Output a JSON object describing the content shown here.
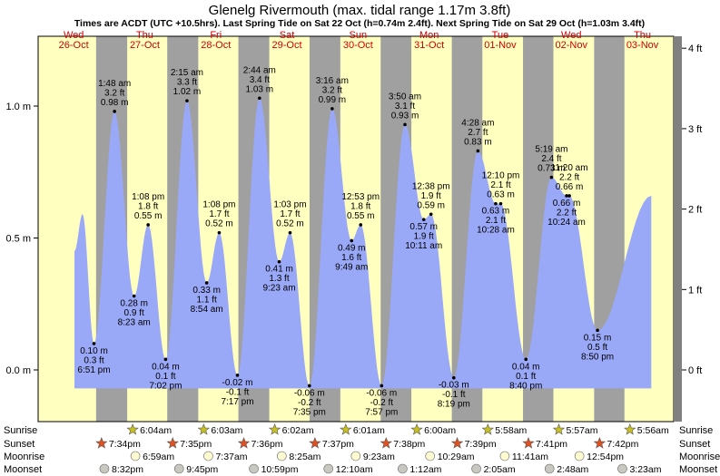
{
  "title": "Glenelg Rivermouth (max. tidal range 1.17m 3.8ft)",
  "subtitle": "Times are ACDT (UTC +10.5hrs). Last Spring Tide on Sat 22 Oct (h=0.74m 2.4ft). Next Spring Tide on Sat 29 Oct (h=1.03m 3.4ft)",
  "colors": {
    "day": "#ffffc0",
    "night": "#a0a0a0",
    "water": "#9aa8f8",
    "day_label": "#d00000",
    "border": "#808080"
  },
  "chart_data": {
    "type": "area",
    "x_unit": "date/time (ACDT)",
    "y_unit": "m",
    "ylim": [
      -0.17,
      1.21
    ],
    "yticks_left": [
      "0.0 m",
      "0.5 m",
      "1.0 m"
    ],
    "yticks_right": [
      "0 ft",
      "1 ft",
      "2 ft",
      "3 ft",
      "4 ft"
    ],
    "days": [
      {
        "weekday": "Wed",
        "date": "26-Oct"
      },
      {
        "weekday": "Thu",
        "date": "27-Oct"
      },
      {
        "weekday": "Fri",
        "date": "28-Oct"
      },
      {
        "weekday": "Sat",
        "date": "29-Oct"
      },
      {
        "weekday": "Sun",
        "date": "30-Oct"
      },
      {
        "weekday": "Mon",
        "date": "31-Oct"
      },
      {
        "weekday": "Tue",
        "date": "01-Nov"
      },
      {
        "weekday": "Wed",
        "date": "02-Nov"
      },
      {
        "weekday": "Thu",
        "date": "03-Nov"
      }
    ],
    "series_start": {
      "day": 0,
      "time": "12:15 pm",
      "m": 0.45
    },
    "series_end": {
      "day": 8,
      "time": "3:00 pm",
      "m": 0.66
    },
    "extremes": [
      {
        "day": 0,
        "time": "3:00 pm",
        "m": 0.59,
        "labeled": false
      },
      {
        "day": 0,
        "time": "6:51 pm",
        "m": 0.1,
        "ft": "0.3 ft",
        "m_label": "0.10 m",
        "time_label": "6:51 pm",
        "kind": "low"
      },
      {
        "day": 1,
        "time": "1:48 am",
        "m": 0.98,
        "ft": "3.2 ft",
        "m_label": "0.98 m",
        "time_label": "1:48 am",
        "kind": "high"
      },
      {
        "day": 1,
        "time": "8:23 am",
        "m": 0.28,
        "ft": "0.9 ft",
        "m_label": "0.28 m",
        "time_label": "8:23 am",
        "kind": "low"
      },
      {
        "day": 1,
        "time": "1:08 pm",
        "m": 0.55,
        "ft": "1.8 ft",
        "m_label": "0.55 m",
        "time_label": "1:08 pm",
        "kind": "high"
      },
      {
        "day": 1,
        "time": "7:02 pm",
        "m": 0.04,
        "ft": "0.1 ft",
        "m_label": "0.04 m",
        "time_label": "7:02 pm",
        "kind": "low"
      },
      {
        "day": 2,
        "time": "2:15 am",
        "m": 1.02,
        "ft": "3.3 ft",
        "m_label": "1.02 m",
        "time_label": "2:15 am",
        "kind": "high"
      },
      {
        "day": 2,
        "time": "8:54 am",
        "m": 0.33,
        "ft": "1.1 ft",
        "m_label": "0.33 m",
        "time_label": "8:54 am",
        "kind": "low"
      },
      {
        "day": 2,
        "time": "1:08 pm",
        "m": 0.52,
        "ft": "1.7 ft",
        "m_label": "0.52 m",
        "time_label": "1:08 pm",
        "kind": "high"
      },
      {
        "day": 2,
        "time": "7:17 pm",
        "m": -0.02,
        "ft": "-0.1 ft",
        "m_label": "-0.02 m",
        "time_label": "7:17 pm",
        "kind": "low"
      },
      {
        "day": 3,
        "time": "2:44 am",
        "m": 1.03,
        "ft": "3.4 ft",
        "m_label": "1.03 m",
        "time_label": "2:44 am",
        "kind": "high"
      },
      {
        "day": 3,
        "time": "9:23 am",
        "m": 0.41,
        "ft": "1.3 ft",
        "m_label": "0.41 m",
        "time_label": "9:23 am",
        "kind": "low"
      },
      {
        "day": 3,
        "time": "1:03 pm",
        "m": 0.52,
        "ft": "1.7 ft",
        "m_label": "0.52 m",
        "time_label": "1:03 pm",
        "kind": "high"
      },
      {
        "day": 3,
        "time": "7:35 pm",
        "m": -0.06,
        "ft": "-0.2 ft",
        "m_label": "-0.06 m",
        "time_label": "7:35 pm",
        "kind": "low"
      },
      {
        "day": 4,
        "time": "3:16 am",
        "m": 0.99,
        "ft": "3.2 ft",
        "m_label": "0.99 m",
        "time_label": "3:16 am",
        "kind": "high"
      },
      {
        "day": 4,
        "time": "9:49 am",
        "m": 0.49,
        "ft": "1.6 ft",
        "m_label": "0.49 m",
        "time_label": "9:49 am",
        "kind": "low"
      },
      {
        "day": 4,
        "time": "12:53 pm",
        "m": 0.55,
        "ft": "1.8 ft",
        "m_label": "0.55 m",
        "time_label": "12:53 pm",
        "kind": "high"
      },
      {
        "day": 4,
        "time": "7:57 pm",
        "m": -0.06,
        "ft": "-0.2 ft",
        "m_label": "-0.06 m",
        "time_label": "7:57 pm",
        "kind": "low"
      },
      {
        "day": 5,
        "time": "3:50 am",
        "m": 0.93,
        "ft": "3.1 ft",
        "m_label": "0.93 m",
        "time_label": "3:50 am",
        "kind": "high"
      },
      {
        "day": 5,
        "time": "10:11 am",
        "m": 0.57,
        "ft": "1.9 ft",
        "m_label": "0.57 m",
        "time_label": "10:11 am",
        "kind": "low"
      },
      {
        "day": 5,
        "time": "12:38 pm",
        "m": 0.59,
        "ft": "1.9 ft",
        "m_label": "0.59 m",
        "time_label": "12:38 pm",
        "kind": "high"
      },
      {
        "day": 5,
        "time": "8:19 pm",
        "m": -0.03,
        "ft": "-0.1 ft",
        "m_label": "-0.03 m",
        "time_label": "8:19 pm",
        "kind": "low"
      },
      {
        "day": 6,
        "time": "4:28 am",
        "m": 0.83,
        "ft": "2.7 ft",
        "m_label": "0.83 m",
        "time_label": "4:28 am",
        "kind": "high"
      },
      {
        "day": 6,
        "time": "10:28 am",
        "m": 0.63,
        "ft": "2.1 ft",
        "m_label": "0.63 m",
        "time_label": "10:28 am",
        "kind": "low"
      },
      {
        "day": 6,
        "time": "12:10 pm",
        "m": 0.63,
        "ft": "2.1 ft",
        "m_label": "0.63 m",
        "time_label": "12:10 pm",
        "kind": "high"
      },
      {
        "day": 6,
        "time": "8:40 pm",
        "m": 0.04,
        "ft": "0.1 ft",
        "m_label": "0.04 m",
        "time_label": "8:40 pm",
        "kind": "low"
      },
      {
        "day": 7,
        "time": "5:19 am",
        "m": 0.73,
        "ft": "2.4 ft",
        "m_label": "0.73 m",
        "time_label": "5:19 am",
        "kind": "high"
      },
      {
        "day": 7,
        "time": "10:24 am",
        "m": 0.66,
        "ft": "2.2 ft",
        "m_label": "0.66 m",
        "time_label": "10:24 am",
        "kind": "low"
      },
      {
        "day": 7,
        "time": "11:20 am",
        "m": 0.66,
        "ft": "2.2 ft",
        "m_label": "0.66 m",
        "time_label": "11:20 am",
        "kind": "high"
      },
      {
        "day": 7,
        "time": "8:50 pm",
        "m": 0.15,
        "ft": "0.5 ft",
        "m_label": "0.15 m",
        "time_label": "8:50 pm",
        "kind": "low"
      }
    ],
    "nights": [
      {
        "start": {
          "day": 0,
          "time": "7:34 pm"
        },
        "end": {
          "day": 1,
          "time": "6:04 am"
        }
      },
      {
        "start": {
          "day": 1,
          "time": "7:35 pm"
        },
        "end": {
          "day": 2,
          "time": "6:03 am"
        }
      },
      {
        "start": {
          "day": 2,
          "time": "7:36 pm"
        },
        "end": {
          "day": 3,
          "time": "6:02 am"
        }
      },
      {
        "start": {
          "day": 3,
          "time": "7:37 pm"
        },
        "end": {
          "day": 4,
          "time": "6:01 am"
        }
      },
      {
        "start": {
          "day": 4,
          "time": "7:38 pm"
        },
        "end": {
          "day": 5,
          "time": "6:00 am"
        }
      },
      {
        "start": {
          "day": 5,
          "time": "7:39 pm"
        },
        "end": {
          "day": 6,
          "time": "5:58 am"
        }
      },
      {
        "start": {
          "day": 6,
          "time": "7:41 pm"
        },
        "end": {
          "day": 7,
          "time": "5:57 am"
        }
      },
      {
        "start": {
          "day": 7,
          "time": "7:42 pm"
        },
        "end": {
          "day": 8,
          "time": "5:56 am"
        }
      }
    ]
  },
  "astro": {
    "row_labels": [
      "Sunrise",
      "Sunset",
      "Moonrise",
      "Moonset"
    ],
    "sunrise": [
      {
        "day": 1,
        "time": "6:04am"
      },
      {
        "day": 2,
        "time": "6:03am"
      },
      {
        "day": 3,
        "time": "6:02am"
      },
      {
        "day": 4,
        "time": "6:01am"
      },
      {
        "day": 5,
        "time": "6:00am"
      },
      {
        "day": 6,
        "time": "5:58am"
      },
      {
        "day": 7,
        "time": "5:57am"
      },
      {
        "day": 8,
        "time": "5:56am"
      }
    ],
    "sunset": [
      {
        "day": 0,
        "time": "7:34pm"
      },
      {
        "day": 1,
        "time": "7:35pm"
      },
      {
        "day": 2,
        "time": "7:36pm"
      },
      {
        "day": 3,
        "time": "7:37pm"
      },
      {
        "day": 4,
        "time": "7:38pm"
      },
      {
        "day": 5,
        "time": "7:39pm"
      },
      {
        "day": 6,
        "time": "7:41pm"
      },
      {
        "day": 7,
        "time": "7:42pm"
      }
    ],
    "moonrise": [
      {
        "day": 1,
        "time": "6:59am"
      },
      {
        "day": 2,
        "time": "7:37am"
      },
      {
        "day": 3,
        "time": "8:25am"
      },
      {
        "day": 4,
        "time": "9:23am"
      },
      {
        "day": 5,
        "time": "10:29am"
      },
      {
        "day": 6,
        "time": "11:41am"
      },
      {
        "day": 7,
        "time": "12:54pm"
      }
    ],
    "moonset": [
      {
        "day": 0,
        "time": "8:32pm"
      },
      {
        "day": 1,
        "time": "9:45pm"
      },
      {
        "day": 2,
        "time": "10:59pm"
      },
      {
        "day": 4,
        "time": "12:10am"
      },
      {
        "day": 5,
        "time": "1:12am"
      },
      {
        "day": 6,
        "time": "2:05am"
      },
      {
        "day": 7,
        "time": "2:48am"
      },
      {
        "day": 8,
        "time": "3:23am"
      }
    ]
  }
}
